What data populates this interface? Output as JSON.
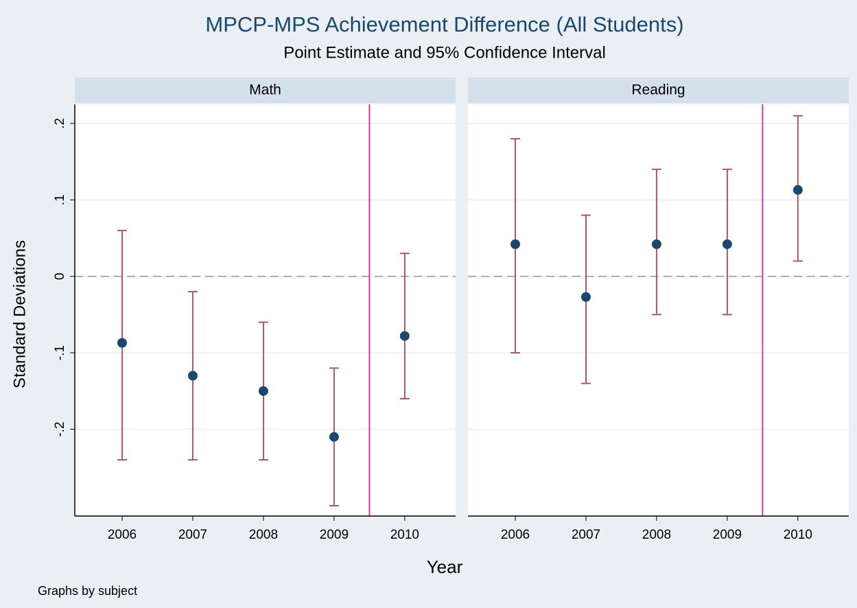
{
  "chart_data": {
    "type": "scatter",
    "title": "MPCP-MPS Achievement Difference (All Students)",
    "subtitle": "Point Estimate and 95% Confidence Interval",
    "x_label": "Year",
    "y_label": "Standard Deviations",
    "note": "Graphs by subject",
    "point_color": "#1a476f",
    "ci_color": "#a85a60",
    "vline": 2009.5,
    "vline_color": "#e0359a",
    "hline": 0,
    "grid": true,
    "xlim": [
      2005.33,
      2010.72
    ],
    "xticks": [
      2006,
      2007,
      2008,
      2009,
      2010
    ],
    "ylim": [
      -0.3135,
      0.225
    ],
    "yticks": [
      {
        "value": 0.2,
        "label": ".2"
      },
      {
        "value": 0.1,
        "label": ".1"
      },
      0,
      {
        "value": -0.1,
        "label": "-.1"
      },
      {
        "value": -0.2,
        "label": "-.2"
      }
    ],
    "panels": [
      {
        "name": "Math",
        "x": [
          2006,
          2007,
          2008,
          2009,
          2010
        ],
        "values": [
          -0.087,
          -0.13,
          -0.15,
          -0.21,
          -0.078
        ],
        "lower": [
          -0.24,
          -0.24,
          -0.24,
          -0.3,
          -0.16
        ],
        "upper": [
          0.06,
          -0.02,
          -0.06,
          -0.12,
          0.03
        ]
      },
      {
        "name": "Reading",
        "x": [
          2006,
          2007,
          2008,
          2009,
          2010
        ],
        "values": [
          0.042,
          -0.027,
          0.042,
          0.042,
          0.113
        ],
        "lower": [
          -0.1,
          -0.14,
          -0.05,
          -0.05,
          0.02
        ],
        "upper": [
          0.18,
          0.08,
          0.14,
          0.14,
          0.21
        ]
      }
    ]
  }
}
